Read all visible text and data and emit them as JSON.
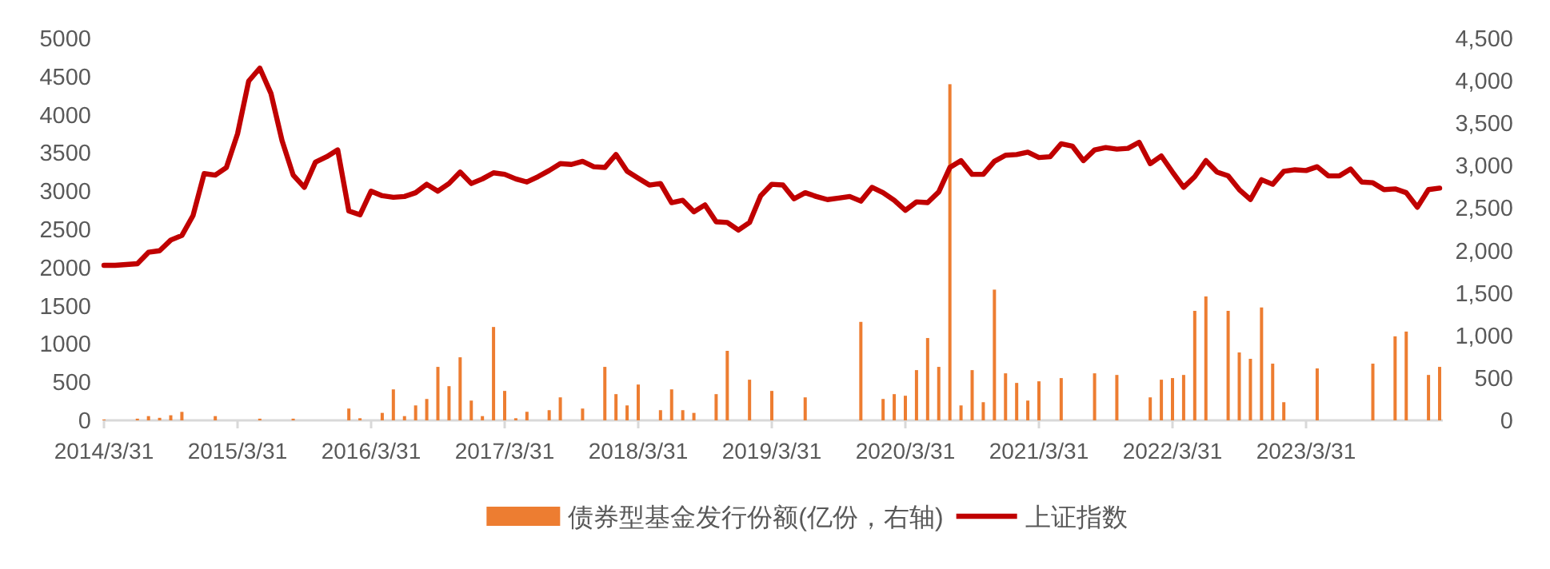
{
  "chart_data": {
    "type": "line",
    "categories": [
      "2014/3/31",
      null,
      null,
      null,
      null,
      null,
      null,
      null,
      null,
      null,
      null,
      null,
      "2015/3/31",
      null,
      null,
      null,
      null,
      null,
      null,
      null,
      null,
      null,
      null,
      null,
      "2016/3/31",
      null,
      null,
      null,
      null,
      null,
      null,
      null,
      null,
      null,
      null,
      null,
      "2017/3/31",
      null,
      null,
      null,
      null,
      null,
      null,
      null,
      null,
      null,
      null,
      null,
      "2018/3/31",
      null,
      null,
      null,
      null,
      null,
      null,
      null,
      null,
      null,
      null,
      null,
      "2019/3/31",
      null,
      null,
      null,
      null,
      null,
      null,
      null,
      null,
      null,
      null,
      null,
      "2020/3/31",
      null,
      null,
      null,
      null,
      null,
      null,
      null,
      null,
      null,
      null,
      null,
      "2021/3/31",
      null,
      null,
      null,
      null,
      null,
      null,
      null,
      null,
      null,
      null,
      null,
      "2022/3/31",
      null,
      null,
      null,
      null,
      null,
      null,
      null,
      null,
      null,
      null,
      null,
      "2023/3/31",
      null,
      null,
      null,
      null,
      null,
      null,
      null,
      null,
      null,
      null,
      null,
      null
    ],
    "series": [
      {
        "name": "债券型基金发行份额(亿份，右轴)",
        "type": "bar",
        "axis": "y2",
        "color": "#ed7d31",
        "values": [
          10,
          null,
          null,
          20,
          50,
          30,
          60,
          100,
          null,
          null,
          50,
          null,
          null,
          null,
          20,
          null,
          null,
          20,
          null,
          null,
          null,
          null,
          139,
          25,
          null,
          88,
          365,
          50,
          176,
          252,
          630,
          403,
          743,
          233,
          50,
          1100,
          347,
          25,
          101,
          null,
          120,
          271,
          null,
          139,
          null,
          630,
          309,
          176,
          422,
          null,
          120,
          365,
          120,
          88,
          null,
          309,
          819,
          null,
          479,
          null,
          347,
          null,
          null,
          271,
          null,
          null,
          null,
          null,
          1160,
          null,
          252,
          309,
          290,
          592,
          970,
          630,
          3960,
          176,
          592,
          214,
          1540,
          554,
          441,
          233,
          460,
          null,
          498,
          null,
          null,
          554,
          null,
          535,
          null,
          null,
          271,
          479,
          498,
          535,
          1290,
          1460,
          null,
          1290,
          800,
          725,
          1330,
          668,
          214,
          null,
          null,
          612,
          null,
          null,
          null,
          null,
          668,
          null,
          990,
          1046,
          null,
          535,
          630
        ]
      },
      {
        "name": "上证指数",
        "color": "#c00000",
        "values": [
          2030,
          2030,
          2040,
          2050,
          2200,
          2220,
          2360,
          2420,
          2680,
          3230,
          3210,
          3310,
          3750,
          4440,
          4610,
          4280,
          3660,
          3210,
          3050,
          3380,
          3450,
          3540,
          2740,
          2690,
          3000,
          2940,
          2920,
          2930,
          2980,
          3090,
          3000,
          3100,
          3250,
          3100,
          3160,
          3240,
          3220,
          3160,
          3120,
          3190,
          3270,
          3360,
          3350,
          3390,
          3320,
          3310,
          3480,
          3260,
          3170,
          3080,
          3100,
          2850,
          2880,
          2730,
          2820,
          2600,
          2590,
          2490,
          2590,
          2940,
          3090,
          3080,
          2900,
          2980,
          2930,
          2890,
          2910,
          2930,
          2870,
          3050,
          2980,
          2880,
          2750,
          2860,
          2850,
          2990,
          3310,
          3400,
          3220,
          3220,
          3390,
          3470,
          3480,
          3510,
          3440,
          3450,
          3620,
          3590,
          3400,
          3540,
          3570,
          3550,
          3560,
          3640,
          3360,
          3460,
          3250,
          3050,
          3190,
          3400,
          3250,
          3200,
          3020,
          2890,
          3150,
          3090,
          3260,
          3280,
          3270,
          3320,
          3200,
          3200,
          3290,
          3120,
          3110,
          3020,
          3030,
          2980,
          2790,
          3020,
          3040
        ]
      }
    ],
    "ylim": [
      0,
      5000
    ],
    "yticks": [
      0,
      500,
      1000,
      1500,
      2000,
      2500,
      3000,
      3500,
      4000,
      4500,
      5000
    ],
    "y2lim": [
      0,
      4500
    ],
    "y2ticks": [
      0,
      500,
      {
        "value": 1000,
        "label": "1,000"
      },
      {
        "value": 1500,
        "label": "1,500"
      },
      {
        "value": 2000,
        "label": "2,000"
      },
      {
        "value": 2500,
        "label": "2,500"
      },
      {
        "value": 3000,
        "label": "3,000"
      },
      {
        "value": 3500,
        "label": "3,500"
      },
      {
        "value": 4000,
        "label": "4,000"
      },
      {
        "value": 4500,
        "label": "4,500"
      }
    ],
    "legend": "bottom"
  }
}
